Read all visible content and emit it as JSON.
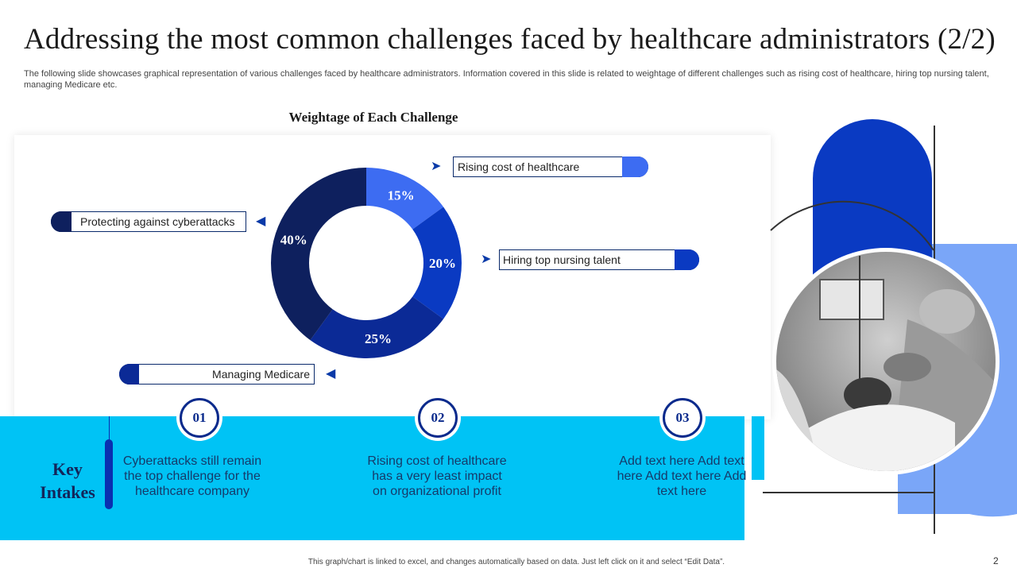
{
  "slide": {
    "title": "Addressing the most common challenges faced by healthcare administrators (2/2)",
    "subtitle": "The following slide showcases graphical representation of various challenges faced by healthcare administrators. Information covered in this slide is related to weightage of different challenges such as rising cost of healthcare, hiring top nursing talent, managing Medicare etc.",
    "footer": "This graph/chart is linked to excel, and changes automatically based on data. Just left click on it and select “Edit Data”.",
    "page_number": "2"
  },
  "chart_data": {
    "type": "pie",
    "subtype": "donut",
    "title": "Weightage of Each Challenge",
    "categories": [
      "Rising cost of  healthcare",
      "Hiring top nursing talent",
      "Managing Medicare",
      "Protecting against cyberattacks"
    ],
    "values": [
      15,
      20,
      25,
      40
    ],
    "value_labels": [
      "15%",
      "20%",
      "25%",
      "40%"
    ],
    "colors": [
      "#3d6cf2",
      "#0a3ac2",
      "#0b2a96",
      "#0e205e"
    ]
  },
  "key_intakes": {
    "heading": "Key Intakes",
    "items": [
      {
        "number": "01",
        "text": "Cyberattacks still remain the top challenge for the healthcare company"
      },
      {
        "number": "02",
        "text": "Rising cost of healthcare has a very least impact on organizational profit"
      },
      {
        "number": "03",
        "text": "Add text here Add text here Add text here Add text here"
      }
    ]
  },
  "colors": {
    "band": "#00c3f5",
    "navy": "#0e205e",
    "royal": "#0a3ac2",
    "light_blue": "#7aa6f8"
  },
  "icons": {
    "label_arrow_right": "➤",
    "label_arrow_left": "◀",
    "photo": "healthcare-team-photo"
  }
}
